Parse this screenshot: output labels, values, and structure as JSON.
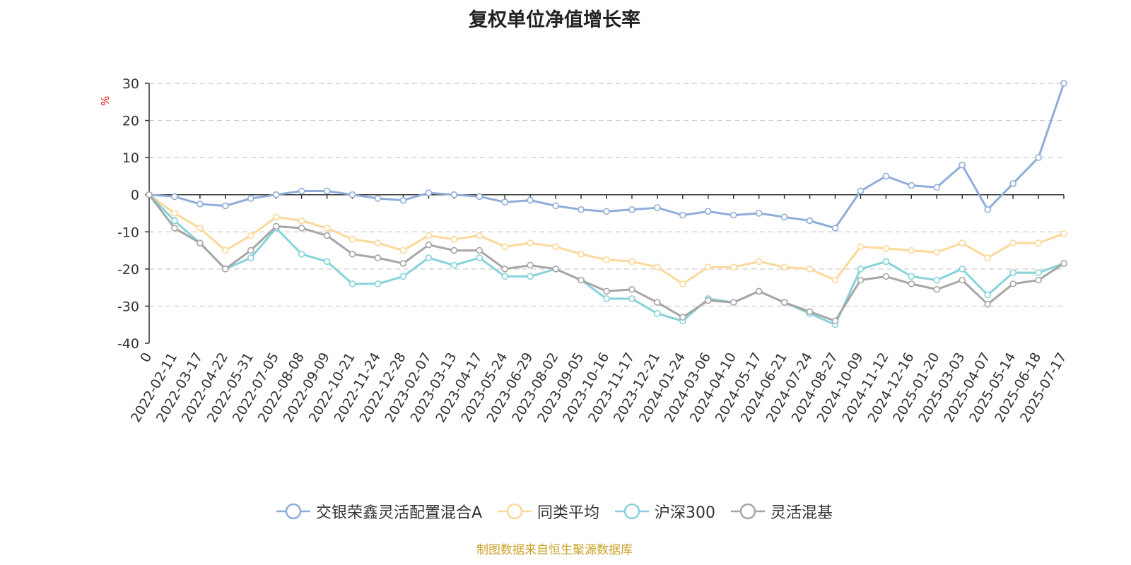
{
  "chart_data": {
    "type": "line",
    "title": "复权单位净值增长率",
    "ylabel": "%",
    "ylim": [
      -40,
      30
    ],
    "yticks": [
      30,
      20,
      10,
      0,
      -10,
      -20,
      -30,
      -40
    ],
    "grid": true,
    "legend_position": "bottom",
    "x": [
      "0",
      "2022-02-11",
      "2022-03-17",
      "2022-04-22",
      "2022-05-31",
      "2022-07-05",
      "2022-08-08",
      "2022-09-09",
      "2022-10-21",
      "2022-11-24",
      "2022-12-28",
      "2023-02-07",
      "2023-03-13",
      "2023-04-17",
      "2023-05-24",
      "2023-06-29",
      "2023-08-02",
      "2023-09-05",
      "2023-10-16",
      "2023-11-17",
      "2023-12-21",
      "2024-01-24",
      "2024-03-06",
      "2024-04-10",
      "2024-05-17",
      "2024-06-21",
      "2024-07-24",
      "2024-08-27",
      "2024-10-09",
      "2024-11-12",
      "2024-12-16",
      "2025-01-20",
      "2025-03-03",
      "2025-04-07",
      "2025-05-14",
      "2025-06-18",
      "2025-07-17"
    ],
    "series": [
      {
        "name": "交银荣鑫灵活配置混合A",
        "color": "#8fadd9",
        "values": [
          0,
          -0.5,
          -2.5,
          -3,
          -1,
          0,
          1,
          1,
          0,
          -1,
          -1.5,
          0.5,
          0,
          -0.5,
          -2,
          -1.5,
          -3,
          -4,
          -4.5,
          -4,
          -3.5,
          -5.5,
          -4.5,
          -5.5,
          -5,
          -6,
          -7,
          -9,
          1,
          5,
          2.5,
          2,
          8,
          -4,
          3,
          10,
          30
        ]
      },
      {
        "name": "同类平均",
        "color": "#fcd89a",
        "values": [
          0,
          -5,
          -9,
          -15,
          -11,
          -6,
          -7,
          -9,
          -12,
          -13,
          -15,
          -11,
          -12,
          -11,
          -14,
          -13,
          -14,
          -16,
          -17.5,
          -18,
          -19.5,
          -24,
          -19.5,
          -19.5,
          -18,
          -19.5,
          -20,
          -23,
          -14,
          -14.5,
          -15,
          -15.5,
          -13,
          -17,
          -13,
          -13,
          -10.5
        ]
      },
      {
        "name": "沪深300",
        "color": "#87d3d9",
        "values": [
          0,
          -7,
          -13,
          -20,
          -17,
          -9,
          -16,
          -18,
          -24,
          -24,
          -22,
          -17,
          -19,
          -17,
          -22,
          -22,
          -20,
          -23,
          -28,
          -28,
          -32,
          -34,
          -28,
          -29,
          -26,
          -29,
          -32,
          -35,
          -20,
          -18,
          -22,
          -23,
          -20,
          -27,
          -21,
          -21,
          -18.5
        ]
      },
      {
        "name": "灵活混基",
        "color": "#a6a6a6",
        "values": [
          0,
          -9,
          -13,
          -20,
          -15,
          -8.5,
          -9,
          -11,
          -16,
          -17,
          -18.5,
          -13.5,
          -15,
          -15,
          -20,
          -19,
          -20,
          -23,
          -26,
          -25.5,
          -29,
          -33,
          -28.5,
          -29,
          -26,
          -29,
          -31.5,
          -34,
          -23,
          -22,
          -24,
          -25.5,
          -23,
          -29.5,
          -24,
          -23,
          -18.5
        ]
      }
    ]
  },
  "source": "制图数据来自恒生聚源数据库"
}
